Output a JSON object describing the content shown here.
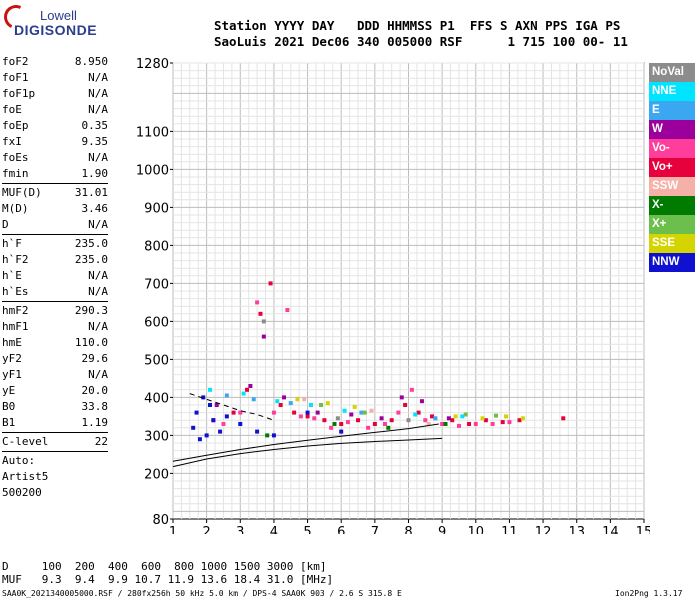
{
  "logo": {
    "line1": "Lowell",
    "line2": "DIGISONDE"
  },
  "header": {
    "row1": "Station YYYY DAY   DDD HHMMSS P1  FFS S AXN PPS IGA PS",
    "row2": "SaoLuis 2021 Dec06 340 005000 RSF      1 715 100 00- 11"
  },
  "params": {
    "group1": [
      {
        "name": "foF2",
        "value": "8.950"
      },
      {
        "name": "foF1",
        "value": "N/A"
      },
      {
        "name": "foF1p",
        "value": "N/A"
      },
      {
        "name": "foE",
        "value": "N/A"
      },
      {
        "name": "foEp",
        "value": "0.35"
      },
      {
        "name": "fxI",
        "value": "9.35"
      },
      {
        "name": "foEs",
        "value": "N/A"
      },
      {
        "name": "fmin",
        "value": "1.90"
      }
    ],
    "group2": [
      {
        "name": "MUF(D)",
        "value": "31.01"
      },
      {
        "name": "M(D)",
        "value": "3.46"
      },
      {
        "name": "D",
        "value": "N/A"
      }
    ],
    "group3": [
      {
        "name": "h`F",
        "value": "235.0"
      },
      {
        "name": "h`F2",
        "value": "235.0"
      },
      {
        "name": "h`E",
        "value": "N/A"
      },
      {
        "name": "h`Es",
        "value": "N/A"
      }
    ],
    "group4": [
      {
        "name": "hmF2",
        "value": "290.3"
      },
      {
        "name": "hmF1",
        "value": "N/A"
      },
      {
        "name": "hmE",
        "value": "110.0"
      },
      {
        "name": "yF2",
        "value": "29.6"
      },
      {
        "name": "yF1",
        "value": "N/A"
      },
      {
        "name": "yE",
        "value": "20.0"
      },
      {
        "name": "B0",
        "value": "33.8"
      },
      {
        "name": "B1",
        "value": "1.19"
      }
    ],
    "clevel": {
      "name": "C-level",
      "value": "22"
    },
    "auto": [
      "Auto:",
      "Artist5",
      "500200"
    ]
  },
  "legend": [
    {
      "label": "NoVal",
      "color": "#8c8c8c"
    },
    {
      "label": "NNE",
      "color": "#00e5ff"
    },
    {
      "label": "E",
      "color": "#3ba7f0"
    },
    {
      "label": "W",
      "color": "#9c009c"
    },
    {
      "label": "Vo-",
      "color": "#ff3d9a"
    },
    {
      "label": "Vo+",
      "color": "#e6003c"
    },
    {
      "label": "SSW",
      "color": "#f5b0a8"
    },
    {
      "label": "X-",
      "color": "#007a00"
    },
    {
      "label": "X+",
      "color": "#6cbf4c"
    },
    {
      "label": "SSE",
      "color": "#d4d400"
    },
    {
      "label": "NNW",
      "color": "#1010d0"
    }
  ],
  "footer": {
    "row_d": "D     100  200  400  600  800 1000 1500 3000 [km]",
    "row_muf": "MUF   9.3  9.4  9.9 10.7 11.9 13.6 18.4 31.0 [MHz]",
    "bottom_left": "SAA0K_2021340005000.RSF / 280fx256h 50 kHz 5.0 km / DPS-4 SAA0K 903 / 2.6 S 315.8 E",
    "bottom_right": "Ion2Png 1.3.17"
  },
  "chart_data": {
    "type": "scatter",
    "title": "",
    "xlabel": "",
    "ylabel": "",
    "xlim": [
      1,
      15
    ],
    "ylim": [
      80,
      1280
    ],
    "xticks": [
      1,
      2,
      3,
      4,
      5,
      6,
      7,
      8,
      9,
      10,
      11,
      12,
      13,
      14,
      15
    ],
    "yticks": [
      80,
      200,
      300,
      400,
      500,
      600,
      700,
      800,
      900,
      1000,
      1100,
      1280
    ],
    "grid": true,
    "series": [
      {
        "name": "Vo+",
        "color": "#e6003c",
        "points": [
          [
            2.2,
            340
          ],
          [
            2.8,
            360
          ],
          [
            3.2,
            420
          ],
          [
            3.6,
            620
          ],
          [
            3.9,
            700
          ],
          [
            4.2,
            380
          ],
          [
            4.6,
            360
          ],
          [
            5.0,
            350
          ],
          [
            5.5,
            340
          ],
          [
            6.0,
            330
          ],
          [
            6.5,
            340
          ],
          [
            7.0,
            330
          ],
          [
            7.5,
            340
          ],
          [
            7.9,
            380
          ],
          [
            8.3,
            360
          ],
          [
            8.7,
            350
          ],
          [
            9.3,
            340
          ],
          [
            9.8,
            330
          ],
          [
            10.3,
            340
          ],
          [
            10.8,
            335
          ],
          [
            11.3,
            340
          ],
          [
            12.6,
            345
          ]
        ]
      },
      {
        "name": "Vo-",
        "color": "#ff3d9a",
        "points": [
          [
            2.5,
            330
          ],
          [
            3.0,
            360
          ],
          [
            3.5,
            650
          ],
          [
            4.0,
            360
          ],
          [
            4.4,
            630
          ],
          [
            4.8,
            350
          ],
          [
            5.2,
            345
          ],
          [
            5.7,
            320
          ],
          [
            6.2,
            335
          ],
          [
            6.8,
            320
          ],
          [
            7.3,
            330
          ],
          [
            7.7,
            360
          ],
          [
            8.1,
            420
          ],
          [
            8.5,
            340
          ],
          [
            9.0,
            330
          ],
          [
            9.5,
            325
          ],
          [
            10.0,
            330
          ],
          [
            10.5,
            330
          ],
          [
            11.0,
            335
          ]
        ]
      },
      {
        "name": "NNW",
        "color": "#1010d0",
        "points": [
          [
            1.6,
            320
          ],
          [
            1.7,
            360
          ],
          [
            1.8,
            290
          ],
          [
            1.9,
            400
          ],
          [
            2.0,
            300
          ],
          [
            2.1,
            380
          ],
          [
            2.2,
            340
          ],
          [
            2.4,
            310
          ],
          [
            2.6,
            350
          ],
          [
            3.0,
            330
          ],
          [
            3.5,
            310
          ],
          [
            4.0,
            300
          ],
          [
            5.0,
            360
          ],
          [
            6.0,
            310
          ]
        ]
      },
      {
        "name": "W",
        "color": "#9c009c",
        "points": [
          [
            2.3,
            380
          ],
          [
            3.3,
            430
          ],
          [
            3.7,
            560
          ],
          [
            4.3,
            400
          ],
          [
            5.3,
            360
          ],
          [
            6.3,
            355
          ],
          [
            7.2,
            345
          ],
          [
            7.8,
            400
          ],
          [
            8.4,
            390
          ],
          [
            9.2,
            345
          ]
        ]
      },
      {
        "name": "NNE",
        "color": "#00e5ff",
        "points": [
          [
            2.1,
            420
          ],
          [
            3.1,
            410
          ],
          [
            4.1,
            390
          ],
          [
            5.1,
            380
          ],
          [
            6.1,
            365
          ],
          [
            8.2,
            355
          ],
          [
            9.6,
            350
          ]
        ]
      },
      {
        "name": "E",
        "color": "#3ba7f0",
        "points": [
          [
            2.6,
            405
          ],
          [
            3.4,
            395
          ],
          [
            4.5,
            385
          ],
          [
            6.6,
            360
          ],
          [
            8.8,
            345
          ]
        ]
      },
      {
        "name": "SSE",
        "color": "#d4d400",
        "points": [
          [
            4.7,
            395
          ],
          [
            5.6,
            385
          ],
          [
            6.4,
            375
          ],
          [
            9.4,
            350
          ],
          [
            10.2,
            345
          ],
          [
            10.9,
            350
          ],
          [
            11.4,
            345
          ]
        ]
      },
      {
        "name": "X+",
        "color": "#6cbf4c",
        "points": [
          [
            5.4,
            380
          ],
          [
            6.7,
            360
          ],
          [
            9.7,
            355
          ],
          [
            10.6,
            352
          ]
        ]
      },
      {
        "name": "X-",
        "color": "#007a00",
        "points": [
          [
            3.8,
            300
          ],
          [
            5.8,
            330
          ],
          [
            7.4,
            320
          ],
          [
            9.1,
            330
          ]
        ]
      },
      {
        "name": "SSW",
        "color": "#f5b0a8",
        "points": [
          [
            4.9,
            395
          ],
          [
            6.9,
            365
          ],
          [
            8.6,
            330
          ]
        ]
      },
      {
        "name": "NoVal",
        "color": "#8c8c8c",
        "points": [
          [
            3.7,
            600
          ],
          [
            5.9,
            345
          ],
          [
            8.0,
            340
          ]
        ]
      }
    ],
    "curves": [
      {
        "points": [
          [
            1.0,
            218
          ],
          [
            2.0,
            238
          ],
          [
            3.0,
            252
          ],
          [
            4.0,
            263
          ],
          [
            5.0,
            272
          ],
          [
            6.0,
            279
          ],
          [
            7.0,
            284
          ],
          [
            8.0,
            288
          ],
          [
            9.0,
            292
          ]
        ]
      },
      {
        "points": [
          [
            1.0,
            232
          ],
          [
            2.0,
            248
          ],
          [
            3.0,
            263
          ],
          [
            4.0,
            276
          ],
          [
            5.0,
            287
          ],
          [
            6.0,
            298
          ],
          [
            7.0,
            308
          ],
          [
            8.0,
            318
          ],
          [
            8.9,
            330
          ]
        ]
      },
      {
        "points": [
          [
            1.5,
            410
          ],
          [
            2.0,
            395
          ],
          [
            2.5,
            380
          ],
          [
            3.0,
            365
          ],
          [
            3.5,
            355
          ],
          [
            4.0,
            340
          ]
        ],
        "dashed": true
      }
    ]
  }
}
